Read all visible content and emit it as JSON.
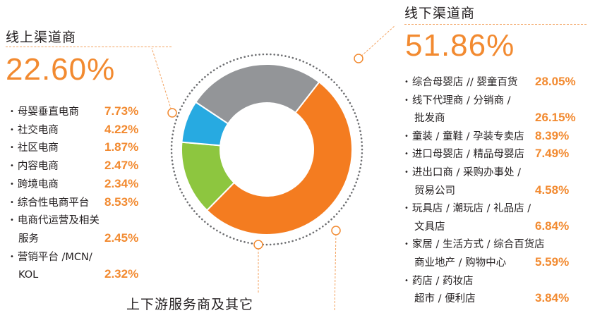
{
  "chart_data": {
    "type": "pie",
    "categories": [
      "线上渠道商",
      "线下渠道商",
      "上下游服务商及其它"
    ],
    "values": [
      22.6,
      51.86,
      25.54
    ],
    "segments": [
      {
        "name": "线下渠道商",
        "value": 51.86,
        "color": "#f47c20"
      },
      {
        "name": "绿色部分",
        "value": 14.0,
        "color": "#8dc63f"
      },
      {
        "name": "蓝色部分",
        "value": 8.0,
        "color": "#27aae1"
      },
      {
        "name": "灰色部分",
        "value": 26.14,
        "color": "#939598"
      }
    ],
    "labels": {
      "online_title": "线上渠道商",
      "online_value": "22.60%",
      "offline_title": "线下渠道商",
      "offline_value": "51.86%",
      "services_title": "上下游服务商及其它"
    },
    "online_items": [
      {
        "lines": [
          "母婴垂直电商"
        ],
        "value": "7.73%"
      },
      {
        "lines": [
          "社交电商"
        ],
        "value": "4.22%"
      },
      {
        "lines": [
          "社区电商"
        ],
        "value": "1.87%"
      },
      {
        "lines": [
          "内容电商"
        ],
        "value": "2.47%"
      },
      {
        "lines": [
          "跨境电商"
        ],
        "value": "2.34%"
      },
      {
        "lines": [
          "综合性电商平台"
        ],
        "value": "8.53%"
      },
      {
        "lines": [
          "电商代运营及相关",
          "服务"
        ],
        "value": "2.45%"
      },
      {
        "lines": [
          "营销平台 /MCN/",
          "KOL"
        ],
        "value": "2.32%"
      }
    ],
    "offline_items": [
      {
        "lines": [
          "综合母婴店 // 婴童百货"
        ],
        "value": "28.05%"
      },
      {
        "lines": [
          "线下代理商 / 分销商 /",
          "批发商"
        ],
        "value": "26.15%"
      },
      {
        "lines": [
          "童装 / 童鞋 / 孕装专卖店"
        ],
        "value": "8.39%"
      },
      {
        "lines": [
          "进口母婴店 / 精品母婴店"
        ],
        "value": "7.49%"
      },
      {
        "lines": [
          "进出口商 / 采购办事处 /",
          "贸易公司"
        ],
        "value": "4.58%"
      },
      {
        "lines": [
          "玩具店 / 潮玩店 / 礼品店 /",
          "文具店"
        ],
        "value": "6.84%"
      },
      {
        "lines": [
          "家居 / 生活方式 / 综合百货店",
          "商业地产 / 购物中心"
        ],
        "value": "5.59%"
      },
      {
        "lines": [
          "药店 / 药妆店",
          "超市 / 便利店"
        ],
        "value": "3.84%"
      }
    ],
    "colors": {
      "accent": "#f28a30",
      "orange": "#f47c20",
      "green": "#8dc63f",
      "blue": "#27aae1",
      "gray": "#939598"
    }
  }
}
